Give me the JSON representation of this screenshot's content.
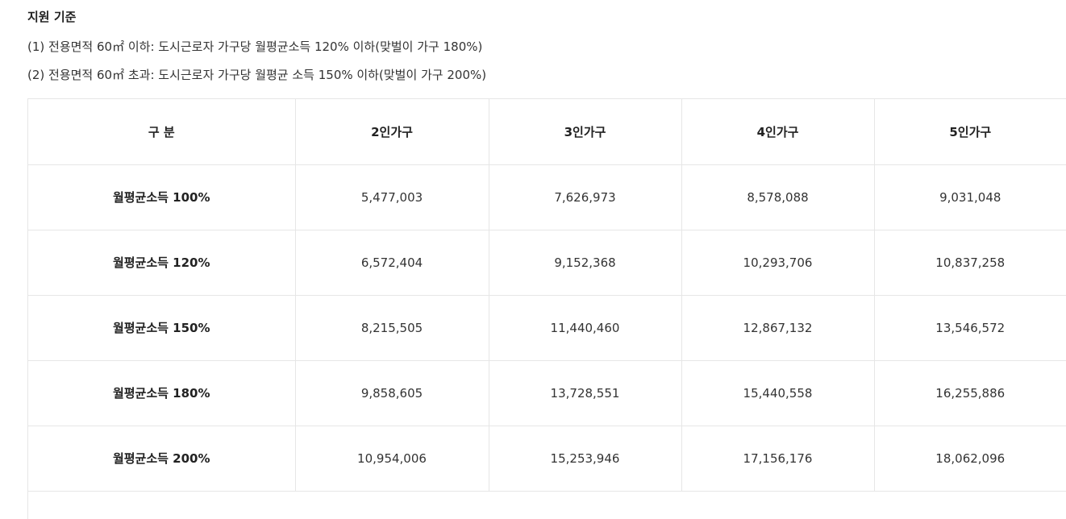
{
  "section": {
    "title": "지원 기준",
    "lines": [
      "(1) 전용면적 60㎡ 이하: 도시근로자 가구당 월평균소득 120% 이하(맞벌이 가구 180%)",
      "(2) 전용면적 60㎡ 초과: 도시근로자 가구당 월평균 소득 150% 이하(맞벌이 가구 200%)"
    ]
  },
  "table": {
    "headers": [
      "구 분",
      "2인가구",
      "3인가구",
      "4인가구",
      "5인가구"
    ],
    "rows": [
      {
        "label": "월평균소득 100%",
        "values": [
          "5,477,003",
          "7,626,973",
          "8,578,088",
          "9,031,048"
        ]
      },
      {
        "label": "월평균소득 120%",
        "values": [
          "6,572,404",
          "9,152,368",
          "10,293,706",
          "10,837,258"
        ]
      },
      {
        "label": "월평균소득 150%",
        "values": [
          "8,215,505",
          "11,440,460",
          "12,867,132",
          "13,546,572"
        ]
      },
      {
        "label": "월평균소득 180%",
        "values": [
          "9,858,605",
          "13,728,551",
          "15,440,558",
          "16,255,886"
        ]
      },
      {
        "label": "월평균소득 200%",
        "values": [
          "10,954,006",
          "15,253,946",
          "17,156,176",
          "18,062,096"
        ]
      }
    ]
  }
}
